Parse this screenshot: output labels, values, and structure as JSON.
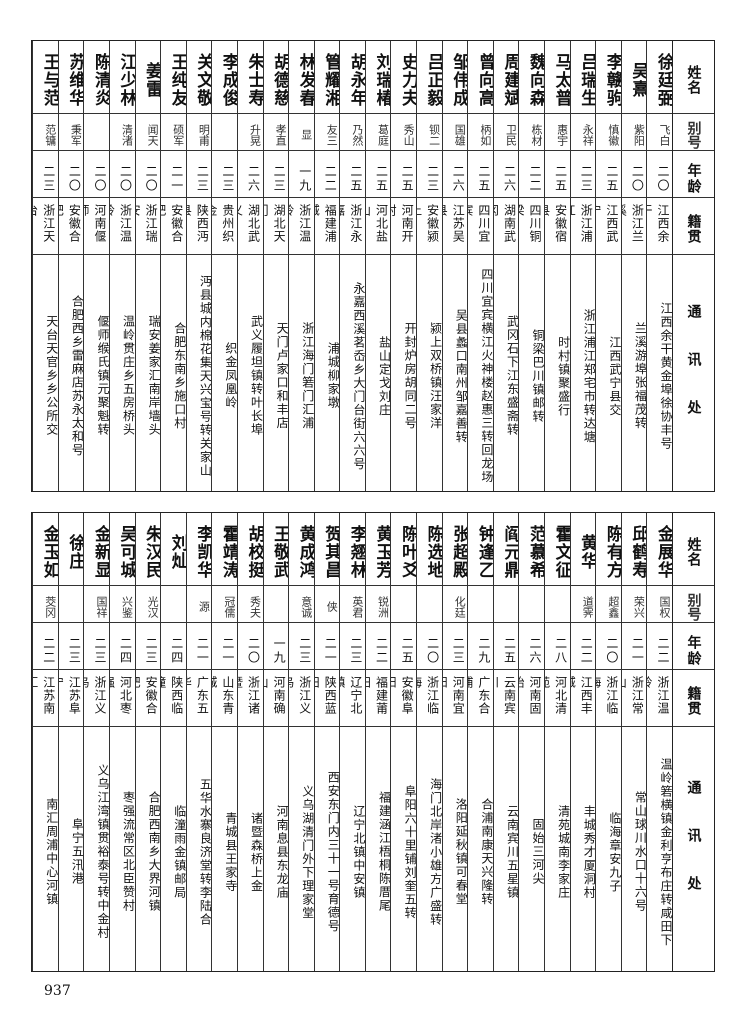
{
  "headers": {
    "name": "姓名",
    "alias": "别号",
    "age": "年龄",
    "native": "籍贯",
    "address": "通讯处"
  },
  "top_table": [
    {
      "name": "徐廷弼",
      "alias": "飞白",
      "age": "二〇",
      "native": "江西余干",
      "address": "江西余干黄金埠徐协丰号"
    },
    {
      "name": "吴熹",
      "alias": "紫阳",
      "age": "二〇",
      "native": "浙江兰溪",
      "address": "兰溪游埠张福茂转"
    },
    {
      "name": "李赣驹",
      "alias": "慎徽",
      "age": "二五",
      "native": "江西武宁",
      "address": "江西武宁县交"
    },
    {
      "name": "吕瑞生",
      "alias": "永祥",
      "age": "二三",
      "native": "浙江浦江",
      "address": "浙江浦江郑宅市转达塘"
    },
    {
      "name": "马太普",
      "alias": "惠宇",
      "age": "二五",
      "native": "安徽宿县",
      "address": "时村镇聚盛行"
    },
    {
      "name": "魏向森",
      "alias": "栋材",
      "age": "二二",
      "native": "四川铜梁",
      "address": "铜梁巴川镇邮转"
    },
    {
      "name": "周建斌",
      "alias": "卫民",
      "age": "二六",
      "native": "湖南武冈",
      "address": "武冈石下江东盛斋转"
    },
    {
      "name": "曾向高",
      "alias": "柄如",
      "age": "二五",
      "native": "四川宜宾",
      "address": "四川宜宾横江火神楼赵惠三转回龙场"
    },
    {
      "name": "邹伟成",
      "alias": "国雄",
      "age": "二六",
      "native": "江苏吴县",
      "address": "吴县蠡口南州邹嘉善转"
    },
    {
      "name": "吕正毅",
      "alias": "钡二",
      "age": "二三",
      "native": "安徽颍上",
      "address": "颍上双桥镇汪家洋"
    },
    {
      "name": "史力夫",
      "alias": "秀山",
      "age": "二五",
      "native": "河南开封",
      "address": "开封炉房胡同二号"
    },
    {
      "name": "刘瑞椿",
      "alias": "葛庭",
      "age": "二五",
      "native": "河北盐山",
      "address": "盐山定戈刘庄"
    },
    {
      "name": "胡永年",
      "alias": "乃然",
      "age": "二五",
      "native": "浙江永嘉",
      "address": "永嘉西溪茗岙乡大门台街六六号"
    },
    {
      "name": "管耀湘",
      "alias": "友三",
      "age": "二二",
      "native": "福建浦城",
      "address": "浦城柳家墩"
    },
    {
      "name": "林发春",
      "alias": "显",
      "age": "一九",
      "native": "浙江温岭",
      "address": "浙江海门箬门汇浦"
    },
    {
      "name": "胡德慈",
      "alias": "孝直",
      "age": "二三",
      "native": "湖北天门",
      "address": "天门卢家口和丰店"
    },
    {
      "name": "朱士寿",
      "alias": "升晃",
      "age": "二六",
      "native": "湖北武义",
      "address": "武义履坦镇转叶长埠"
    },
    {
      "name": "李成俊",
      "alias": "",
      "age": "二三",
      "native": "贵州织金",
      "address": "织金凤凰岭"
    },
    {
      "name": "关文敬",
      "alias": "明甫",
      "age": "二三",
      "native": "陕西沔县",
      "address": "沔县城内棉花集天兴宝号转关家山"
    },
    {
      "name": "王纯友",
      "alias": "硕军",
      "age": "二一",
      "native": "安徽合肥",
      "address": "合肥东南乡施口村"
    },
    {
      "name": "姜雷",
      "alias": "闻天",
      "age": "二〇",
      "native": "浙江瑞安",
      "address": "瑞安姜家汇南岸墙头"
    },
    {
      "name": "江少林",
      "alias": "清渚",
      "age": "二〇",
      "native": "浙江温岭",
      "address": "温岭贯庄乡五房桥头"
    },
    {
      "name": "陈清炎",
      "alias": "",
      "age": "二〇",
      "native": "河南偃师",
      "address": "偃师缑氏镇元聚魁转"
    },
    {
      "name": "苏维华",
      "alias": "秉军",
      "age": "二〇",
      "native": "安徽合肥",
      "address": "合肥西乡雷麻店苏永太和号"
    },
    {
      "name": "王与范",
      "alias": "范镛",
      "age": "二三",
      "native": "浙江天台",
      "address": "天台天官乡乡公所交"
    }
  ],
  "bottom_table": [
    {
      "name": "金展华",
      "alias": "国权",
      "age": "二二",
      "native": "浙江温岭",
      "address": "温岭箬横镇金利亨布庄转咸田下"
    },
    {
      "name": "邱鹤寿",
      "alias": "荣兴",
      "age": "二一",
      "native": "浙江常山",
      "address": "常山球川水口十六号"
    },
    {
      "name": "陈有方",
      "alias": "超鑫",
      "age": "二〇",
      "native": "浙江临海",
      "address": "临海章安九子"
    },
    {
      "name": "黄华",
      "alias": "道霁",
      "age": "二二",
      "native": "江西丰城",
      "address": "丰城秀才厦洞村"
    },
    {
      "name": "霍文征",
      "alias": "",
      "age": "二八",
      "native": "河北清苑",
      "address": "清苑城南李家庄"
    },
    {
      "name": "范慕希",
      "alias": "",
      "age": "二六",
      "native": "河南固始",
      "address": "固始三河尖"
    },
    {
      "name": "阎元鼎",
      "alias": "",
      "age": "二五",
      "native": "云南宾川",
      "address": "云南宾川五星镇"
    },
    {
      "name": "钟逢乙",
      "alias": "",
      "age": "二九",
      "native": "广东合浦",
      "address": "合浦南康天兴隆转"
    },
    {
      "name": "张超殿",
      "alias": "化廷",
      "age": "二三",
      "native": "河南宜阳",
      "address": "洛阳延秋镇可春堂"
    },
    {
      "name": "陈选地",
      "alias": "",
      "age": "二〇",
      "native": "浙江临海",
      "address": "海门北岸渚小雄方广盛转"
    },
    {
      "name": "陈叶爻",
      "alias": "",
      "age": "二五",
      "native": "安徽阜阳",
      "address": "阜阳六十里铺刘奎五转"
    },
    {
      "name": "黄玉芳",
      "alias": "锐洲",
      "age": "二二",
      "native": "福建莆田",
      "address": "福建涵江梧桐陈厝尾"
    },
    {
      "name": "李翘林",
      "alias": "英君",
      "age": "二三",
      "native": "辽宁北镇",
      "address": "辽宁北镇中安镇"
    },
    {
      "name": "贺其昌",
      "alias": "侠",
      "age": "二一",
      "native": "陕西蓝田",
      "address": "西安东门内三十一号育德号"
    },
    {
      "name": "黄成鸿",
      "alias": "意诚",
      "age": "二三",
      "native": "浙江义乌",
      "address": "义乌湖清门外下理家堂"
    },
    {
      "name": "王敬武",
      "alias": "",
      "age": "一九",
      "native": "河南确山",
      "address": "河南息县东龙庙"
    },
    {
      "name": "胡校挺",
      "alias": "秀夫",
      "age": "二〇",
      "native": "浙江诸暨",
      "address": "诸暨森桥上金"
    },
    {
      "name": "霍靖涛",
      "alias": "冠儒",
      "age": "二一",
      "native": "山东青城",
      "address": "青城县王家寺"
    },
    {
      "name": "李凯华",
      "alias": "源",
      "age": "二一",
      "native": "广东五华",
      "address": "五华水寨良济堂转李陆合"
    },
    {
      "name": "刘灿",
      "alias": "",
      "age": "二四",
      "native": "陕西临潼",
      "address": "临潼雨金镇邮局"
    },
    {
      "name": "朱汉民",
      "alias": "光汉",
      "age": "二三",
      "native": "安徽合肥",
      "address": "合肥西南乡大界河镇"
    },
    {
      "name": "吴可城",
      "alias": "兴鉴",
      "age": "二四",
      "native": "河北枣强",
      "address": "枣强流常区北臣赞村"
    },
    {
      "name": "金新显",
      "alias": "国祥",
      "age": "二三",
      "native": "浙江义乌",
      "address": "义乌江湾镇贯裕泰号转中金村"
    },
    {
      "name": "徐庄",
      "alias": "",
      "age": "二三",
      "native": "江苏阜宁",
      "address": "阜宁五汛港"
    },
    {
      "name": "金玉如",
      "alias": "茭冈",
      "age": "二二",
      "native": "江苏南汇",
      "address": "南汇周浦中心河镇"
    }
  ],
  "page_number": "937"
}
